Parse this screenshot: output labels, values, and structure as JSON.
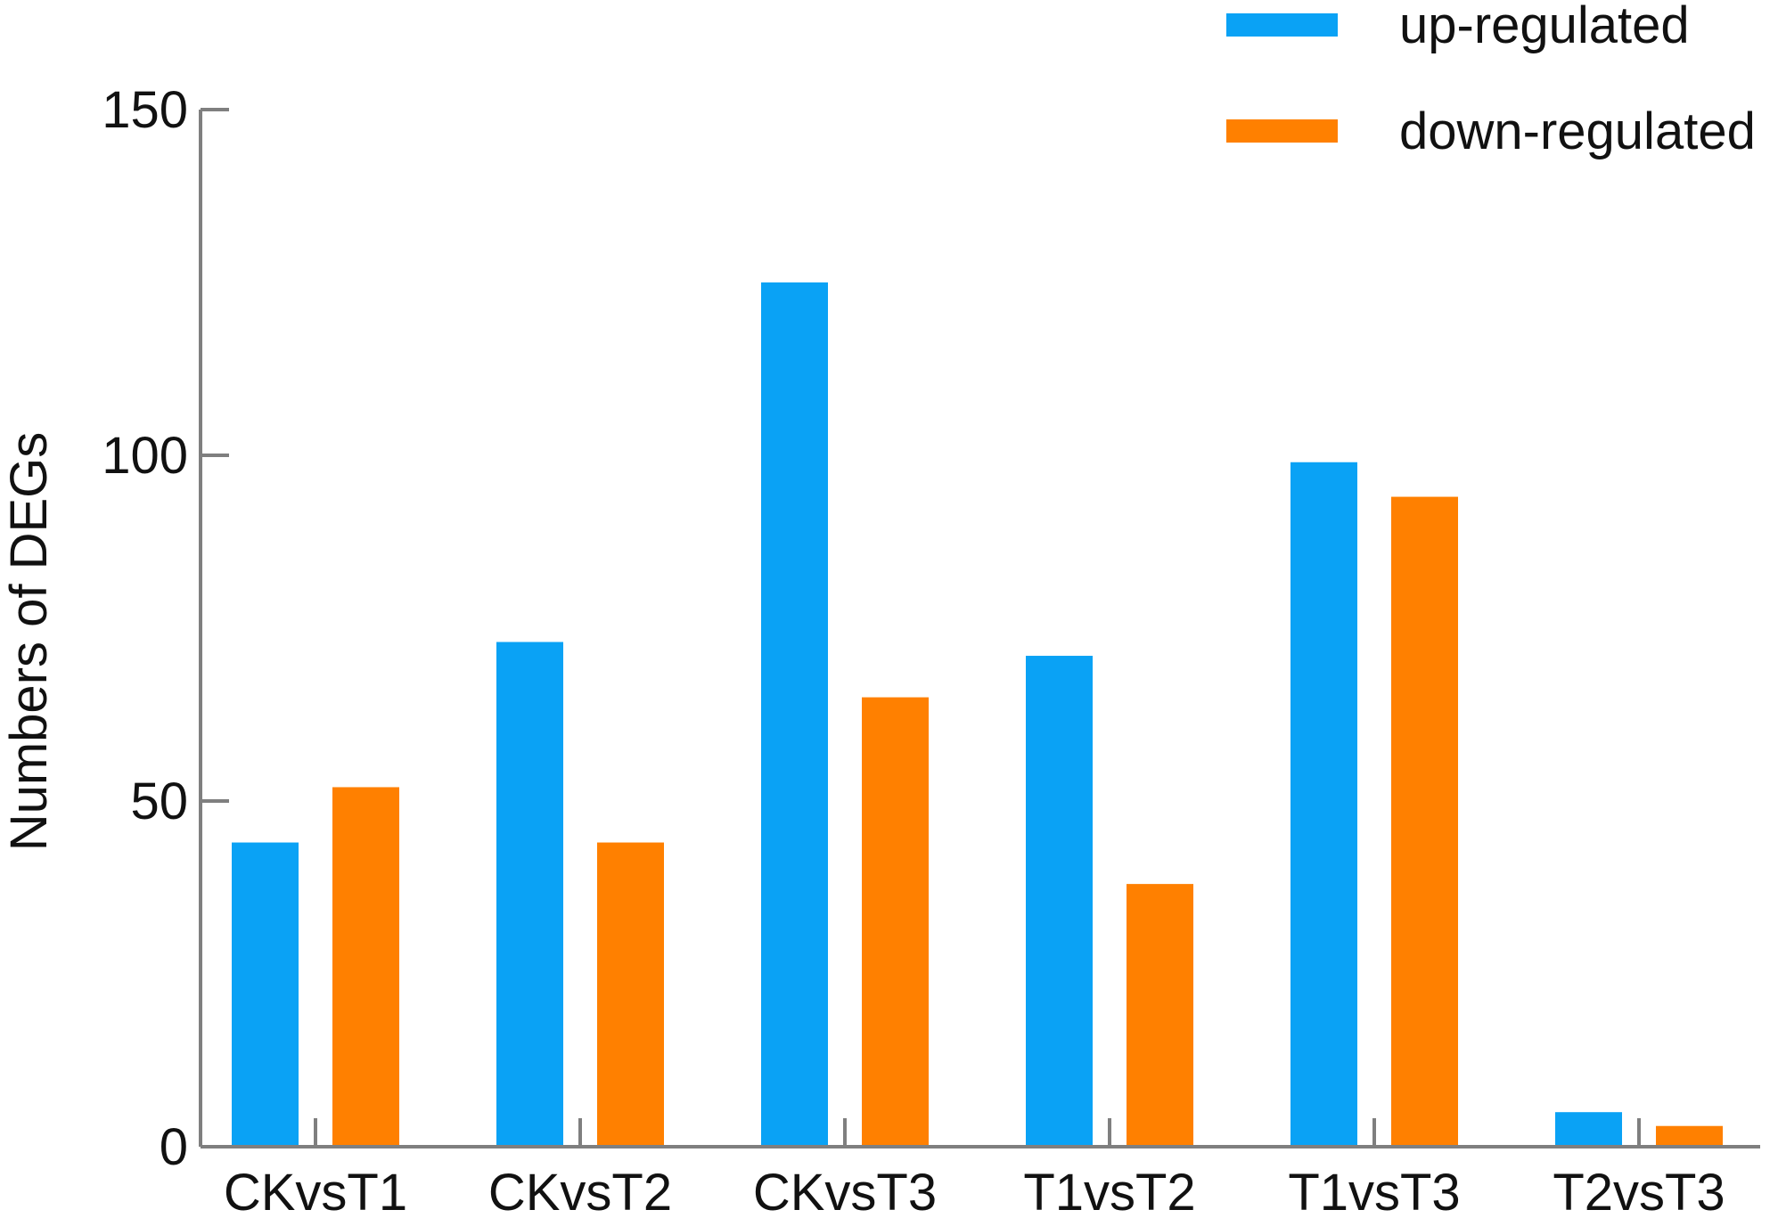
{
  "chart_data": {
    "type": "bar",
    "title": "",
    "xlabel": "",
    "ylabel": "Numbers of  DEGs",
    "categories": [
      "CKvsT1",
      "CKvsT2",
      "CKvsT3",
      "T1vsT2",
      "T1vsT3",
      "T2vsT3"
    ],
    "series": [
      {
        "name": "up-regulated",
        "color": "#0aa2f5",
        "values": [
          44,
          73,
          125,
          71,
          99,
          5
        ]
      },
      {
        "name": "down-regulated",
        "color": "#ff8000",
        "values": [
          52,
          44,
          65,
          38,
          94,
          3
        ]
      }
    ],
    "ylim": [
      0,
      150
    ],
    "yticks": [
      "0",
      "50",
      "100",
      "150"
    ],
    "grid": false,
    "legend_position": "top-right"
  }
}
